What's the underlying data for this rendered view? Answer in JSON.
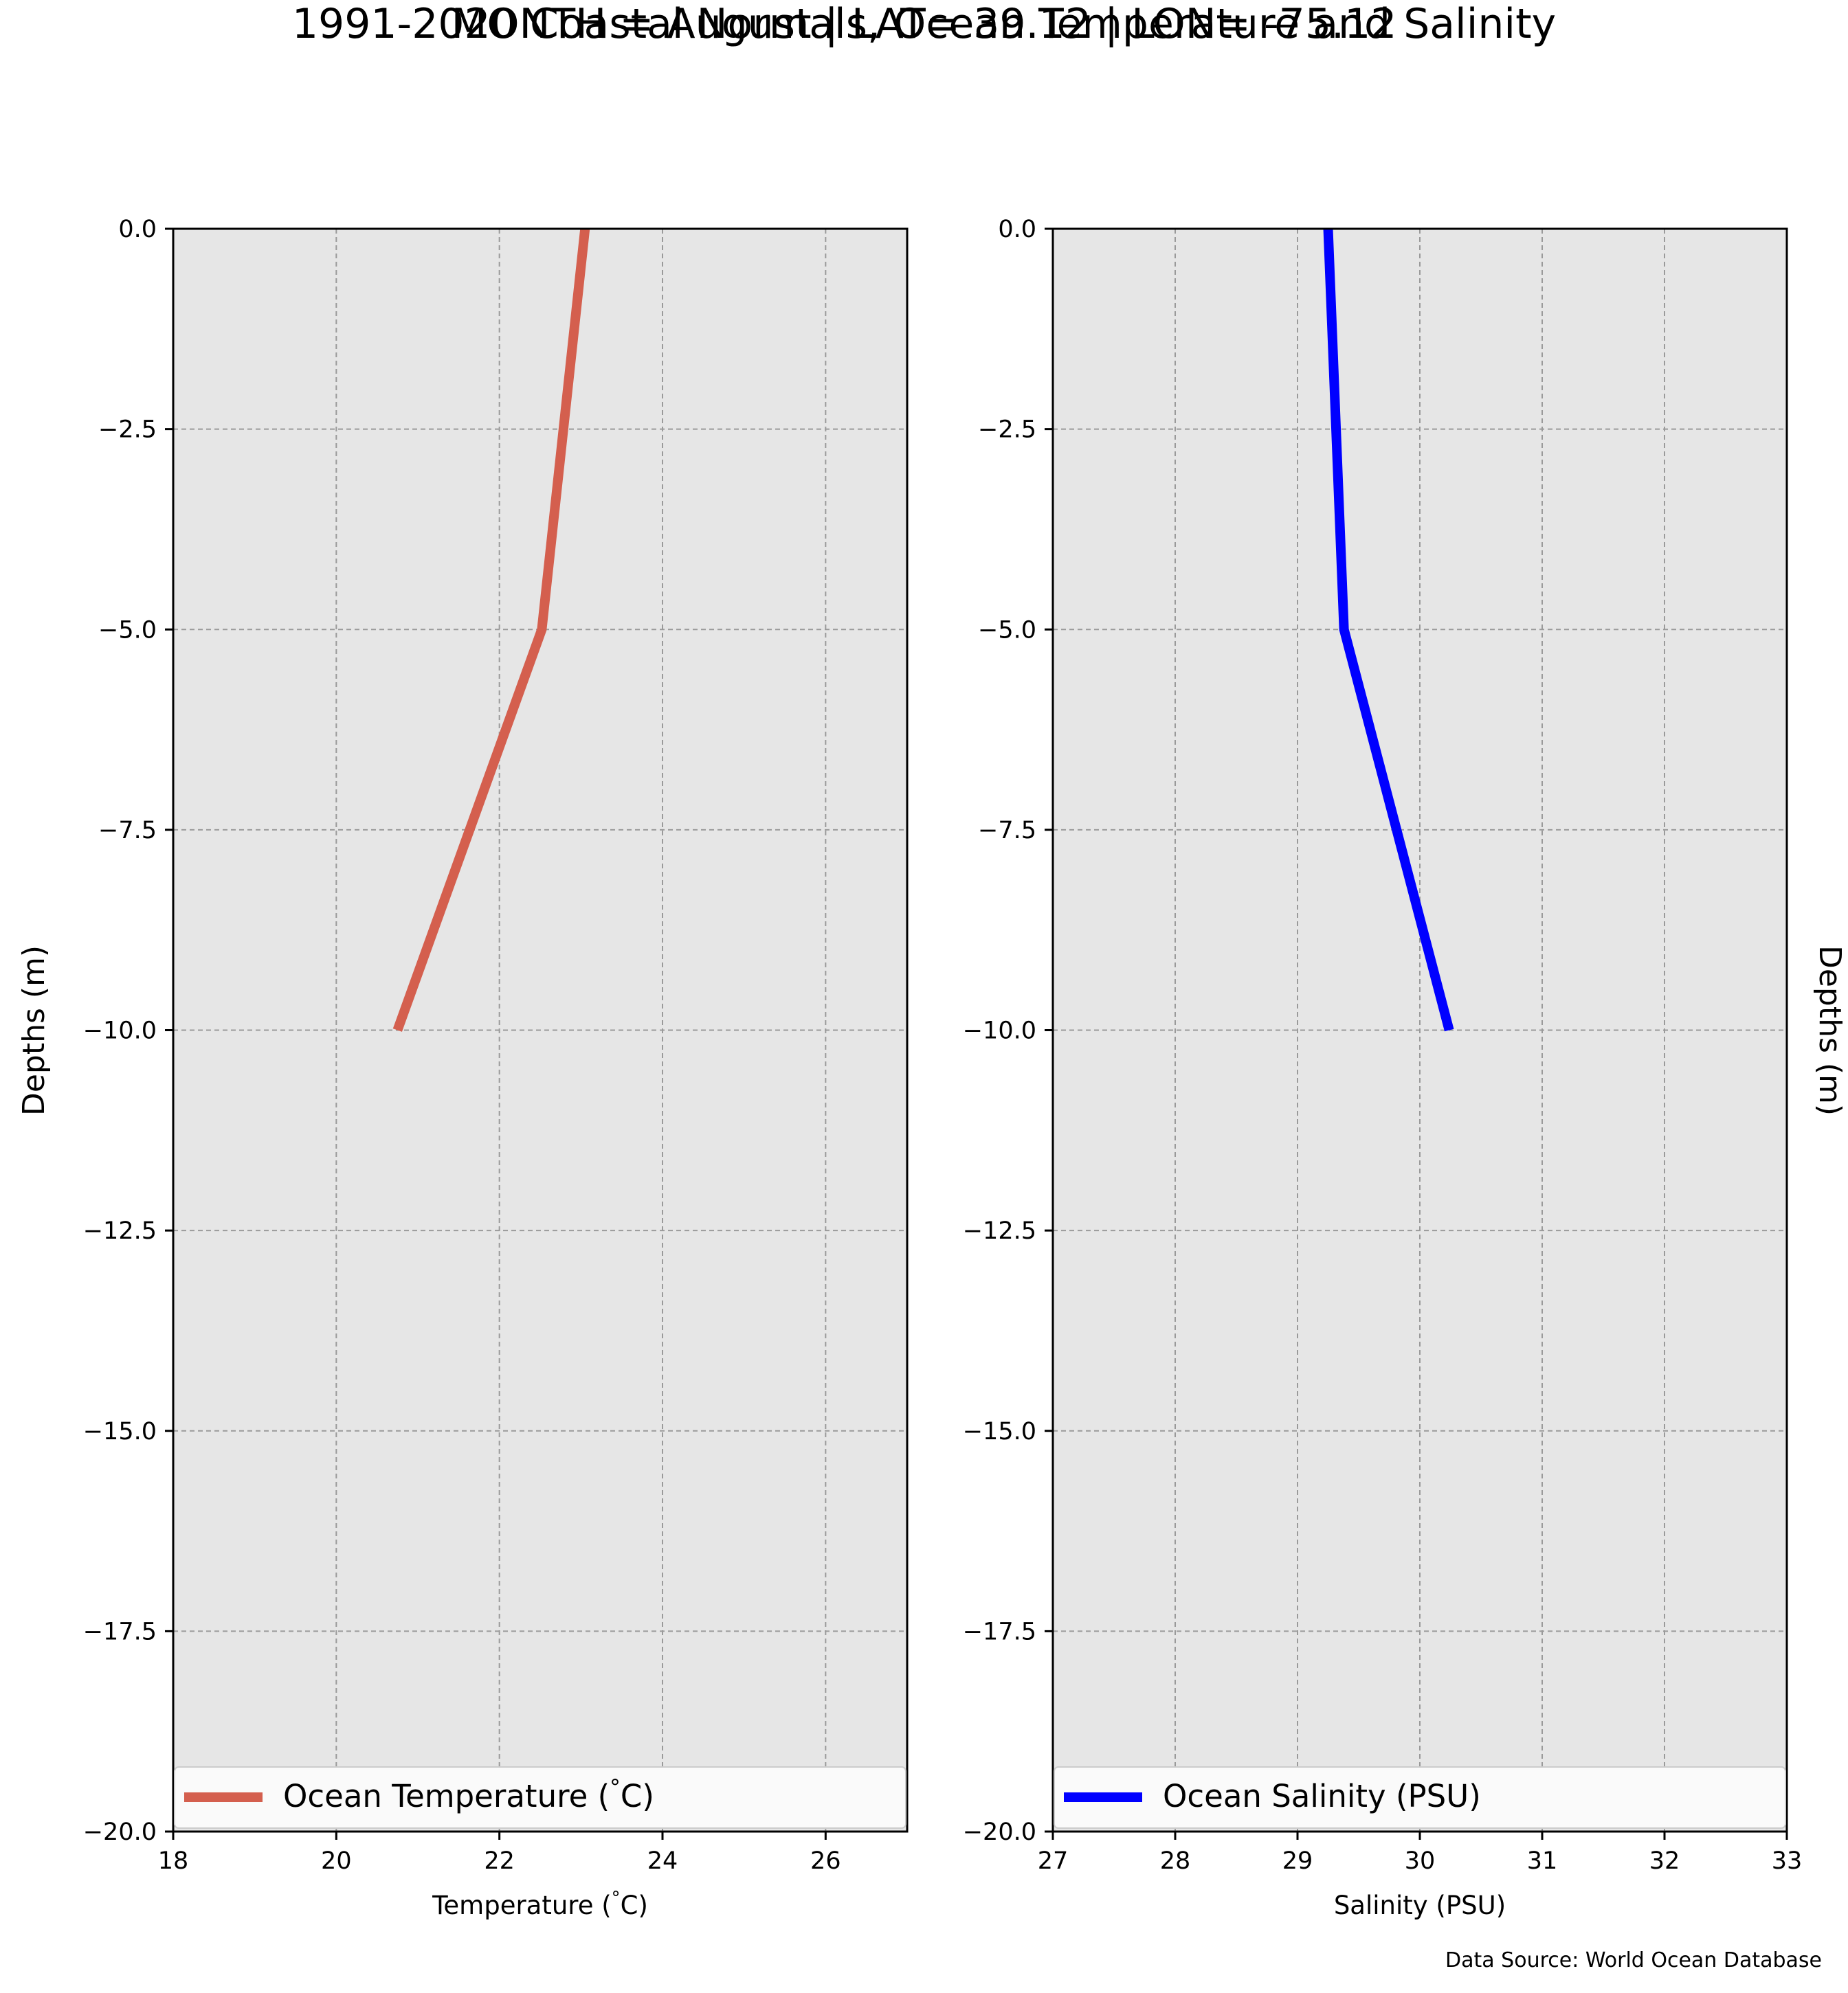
{
  "title": "1991-2020 Coastal Normals, Ocean Temperature and Salinity",
  "subtitle": "MONTH = August | LAT= 39.12 | LON= -75.12",
  "source": "Data Source: World Ocean Database",
  "chart_data": [
    {
      "type": "line",
      "xlabel": "Temperature ($^\\circ$C)",
      "ylabel": "Depths (m)",
      "xlim": [
        18,
        27
      ],
      "ylim": [
        -20,
        0
      ],
      "xticks": [
        18,
        20,
        22,
        24,
        26
      ],
      "yticks": [
        0,
        -2.5,
        -5,
        -7.5,
        -10,
        -12.5,
        -15,
        -17.5,
        -20
      ],
      "grid": true,
      "legend_position": "bottom",
      "series": [
        {
          "name": "Ocean Temperature ($^\\circ$C)",
          "color": "#d45f4e",
          "x": [
            23.05,
            22.52,
            20.75
          ],
          "y": [
            0,
            -5,
            -10
          ]
        }
      ]
    },
    {
      "type": "line",
      "xlabel": "Salinity (PSU)",
      "ylabel": "Depths (m)",
      "xlim": [
        27,
        33
      ],
      "ylim": [
        -20,
        0
      ],
      "xticks": [
        27,
        28,
        29,
        30,
        31,
        32,
        33
      ],
      "yticks": [
        0,
        -2.5,
        -5,
        -7.5,
        -10,
        -12.5,
        -15,
        -17.5,
        -20
      ],
      "grid": true,
      "legend_position": "bottom",
      "series": [
        {
          "name": "Ocean Salinity (PSU)",
          "color": "#0000ff",
          "x": [
            29.25,
            29.38,
            30.24
          ],
          "y": [
            0,
            -5,
            -10
          ]
        }
      ]
    }
  ]
}
